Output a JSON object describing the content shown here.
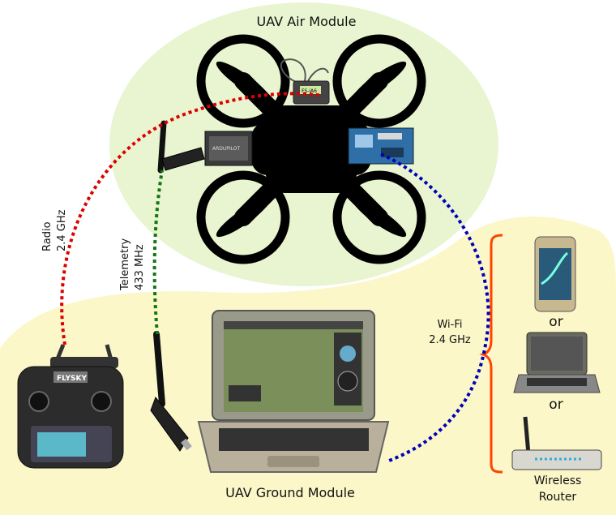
{
  "air_module": {
    "title": "UAV Air Module",
    "receiver_label": "FS-iA6",
    "flight_controller_label": "ARDUPILOT"
  },
  "ground_module": {
    "title": "UAV Ground Module",
    "transmitter_brand": "FLYSKY"
  },
  "links": {
    "radio": {
      "line1": "Radio",
      "line2": "2.4 GHz",
      "color": "#dd0000"
    },
    "telemetry": {
      "line1": "Telemetry",
      "line2": "433 MHz",
      "color": "#117711"
    },
    "wifi": {
      "line1": "Wi-Fi",
      "line2": "2.4 GHz",
      "color": "#0000bb"
    }
  },
  "alternatives": {
    "or_1": "or",
    "or_2": "or",
    "router_line1": "Wireless",
    "router_line2": "Router",
    "brace_color": "#ff4400"
  },
  "colors": {
    "air_zone": "#e8f5d0",
    "ground_zone": "#fbf7c8",
    "drone": "#000000"
  },
  "icons": [
    "drone-icon",
    "rc-receiver-icon",
    "flight-controller-icon",
    "compute-board-icon",
    "telemetry-antenna-icon",
    "rc-transmitter-icon",
    "laptop-icon",
    "usb-telemetry-dongle-icon",
    "smartphone-icon",
    "laptop-alt-icon",
    "wireless-router-icon"
  ]
}
